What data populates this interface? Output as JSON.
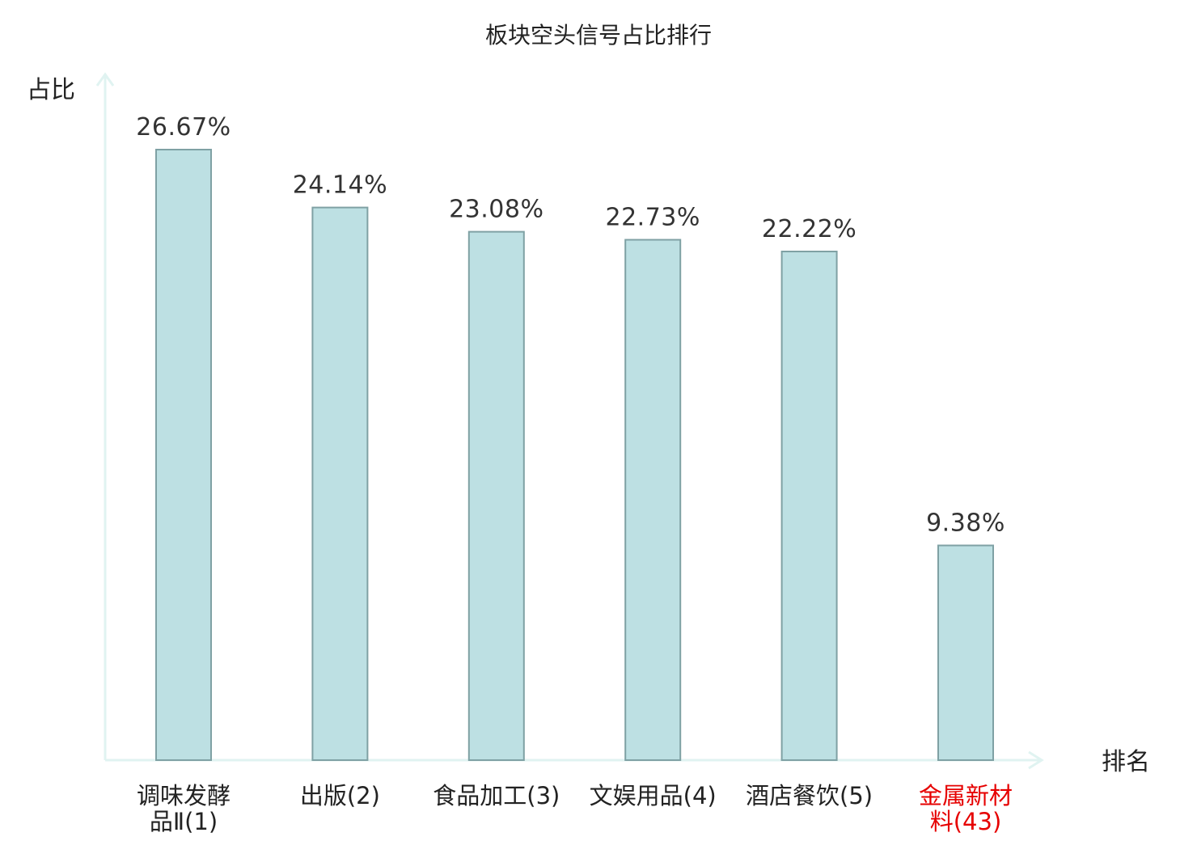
{
  "chart_data": {
    "type": "bar",
    "title": "板块空头信号占比排行",
    "xlabel": "排名",
    "ylabel": "占比",
    "categories": [
      [
        "调味发酵",
        "品Ⅱ(1)"
      ],
      [
        "出版(2)"
      ],
      [
        "食品加工(3)"
      ],
      [
        "文娱用品(4)"
      ],
      [
        "酒店餐饮(5)"
      ],
      [
        "金属新材",
        "料(43)"
      ]
    ],
    "values": [
      26.67,
      24.14,
      23.08,
      22.73,
      22.22,
      9.38
    ],
    "value_labels": [
      "26.67%",
      "24.14%",
      "23.08%",
      "22.73%",
      "22.22%",
      "9.38%"
    ],
    "highlight_index": 5,
    "ylim": [
      0,
      28
    ],
    "grid": false,
    "colors": {
      "bar_fill": "#bde0e3",
      "bar_stroke": "#7fa1a4",
      "axis": "#e0f3f1",
      "label": "#222222",
      "highlight_label": "#e60000"
    }
  }
}
